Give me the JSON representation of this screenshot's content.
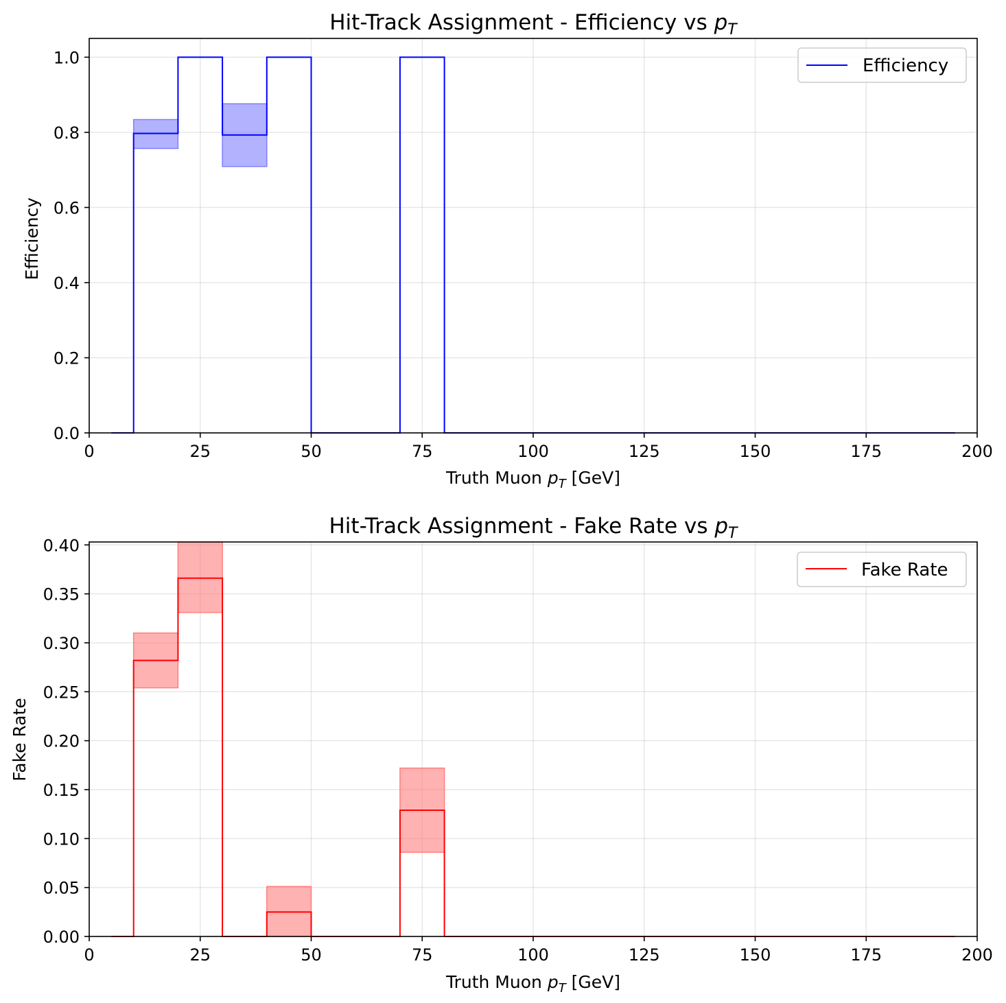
{
  "chart_data": [
    {
      "type": "step",
      "title": "Hit-Track Assignment - Efficiency vs p_T",
      "title_main": "Hit-Track Assignment - Efficiency vs ",
      "title_symbol": "p",
      "title_sub": "T",
      "xlabel": "Truth Muon p_T [GeV]",
      "xlabel_pre": "Truth Muon ",
      "xlabel_symbol": "p",
      "xlabel_sub": "T",
      "xlabel_post": " [GeV]",
      "ylabel": "Efficiency",
      "xlim": [
        0,
        200
      ],
      "ylim": [
        0,
        1.05
      ],
      "xticks": [
        0,
        25,
        50,
        75,
        100,
        125,
        150,
        175,
        200
      ],
      "xtick_labels": [
        "0",
        "25",
        "50",
        "75",
        "100",
        "125",
        "150",
        "175",
        "200"
      ],
      "yticks": [
        0.0,
        0.2,
        0.4,
        0.6,
        0.8,
        1.0
      ],
      "ytick_labels": [
        "0.0",
        "0.2",
        "0.4",
        "0.6",
        "0.8",
        "1.0"
      ],
      "grid": true,
      "legend": "top-right",
      "line_color": "#0000ff",
      "band_color": "#7f7fff",
      "series": [
        {
          "name": "Efficiency",
          "bin_edges": [
            5,
            10,
            20,
            30,
            40,
            50,
            60,
            70,
            80,
            90,
            100,
            110,
            120,
            130,
            140,
            150,
            160,
            170,
            180,
            190,
            195
          ],
          "values": [
            0,
            0.797,
            1.0,
            0.793,
            1.0,
            0,
            0,
            1.0,
            0,
            0,
            0,
            0,
            0,
            0,
            0,
            0,
            0,
            0,
            0,
            0
          ],
          "err_low": [
            0,
            0.757,
            1.0,
            0.709,
            1.0,
            0,
            0,
            1.0,
            0,
            0,
            0,
            0,
            0,
            0,
            0,
            0,
            0,
            0,
            0,
            0
          ],
          "err_high": [
            0,
            0.834,
            1.0,
            0.876,
            1.0,
            0,
            0,
            1.0,
            0,
            0,
            0,
            0,
            0,
            0,
            0,
            0,
            0,
            0,
            0,
            0
          ]
        }
      ]
    },
    {
      "type": "step",
      "title": "Hit-Track Assignment - Fake Rate vs p_T",
      "title_main": "Hit-Track Assignment - Fake Rate vs ",
      "title_symbol": "p",
      "title_sub": "T",
      "xlabel": "Truth Muon p_T [GeV]",
      "xlabel_pre": "Truth Muon ",
      "xlabel_symbol": "p",
      "xlabel_sub": "T",
      "xlabel_post": " [GeV]",
      "ylabel": "Fake Rate",
      "xlim": [
        0,
        200
      ],
      "ylim": [
        0,
        0.403
      ],
      "xticks": [
        0,
        25,
        50,
        75,
        100,
        125,
        150,
        175,
        200
      ],
      "xtick_labels": [
        "0",
        "25",
        "50",
        "75",
        "100",
        "125",
        "150",
        "175",
        "200"
      ],
      "yticks": [
        0.0,
        0.05,
        0.1,
        0.15,
        0.2,
        0.25,
        0.3,
        0.35,
        0.4
      ],
      "ytick_labels": [
        "0.00",
        "0.05",
        "0.10",
        "0.15",
        "0.20",
        "0.25",
        "0.30",
        "0.35",
        "0.40"
      ],
      "grid": true,
      "legend": "top-right",
      "line_color": "#ff0000",
      "band_color": "#ff7f7f",
      "series": [
        {
          "name": "Fake Rate",
          "bin_edges": [
            5,
            10,
            20,
            30,
            40,
            50,
            60,
            70,
            80,
            90,
            100,
            110,
            120,
            130,
            140,
            150,
            160,
            170,
            180,
            190,
            195
          ],
          "values": [
            0,
            0.282,
            0.366,
            0,
            0.025,
            0,
            0,
            0.129,
            0,
            0,
            0,
            0,
            0,
            0,
            0,
            0,
            0,
            0,
            0,
            0
          ],
          "err_low": [
            0,
            0.254,
            0.331,
            0,
            0,
            0,
            0,
            0.086,
            0,
            0,
            0,
            0,
            0,
            0,
            0,
            0,
            0,
            0,
            0,
            0
          ],
          "err_high": [
            0,
            0.31,
            0.403,
            0,
            0.051,
            0,
            0,
            0.172,
            0,
            0,
            0,
            0,
            0,
            0,
            0,
            0,
            0,
            0,
            0,
            0
          ]
        }
      ]
    }
  ]
}
